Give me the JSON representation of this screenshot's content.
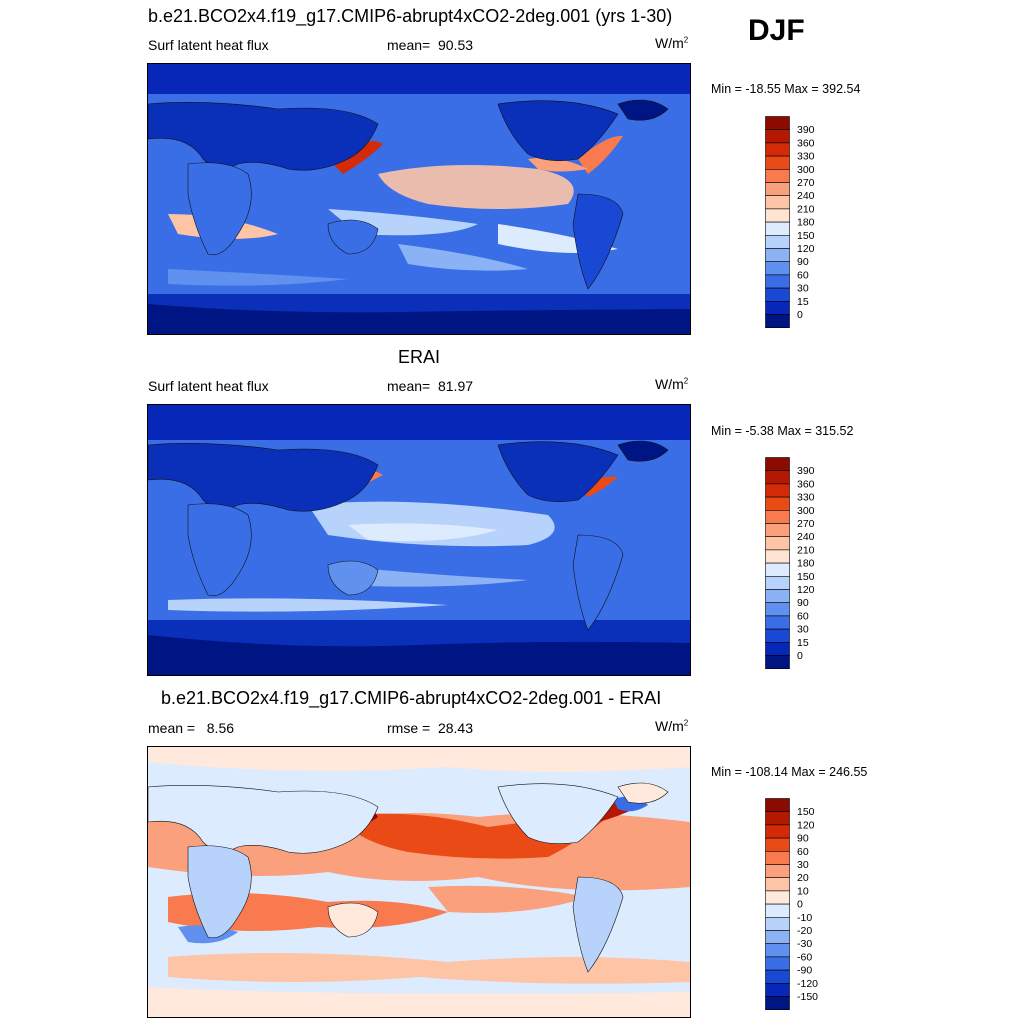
{
  "season": "DJF",
  "panels": [
    {
      "title": "b.e21.BCO2x4.f19_g17.CMIP6-abrupt4xCO2-2deg.001 (yrs 1-30)",
      "variable": "Surf latent heat flux",
      "stat_label": "mean=",
      "stat_value": "90.53",
      "units_base": "W/m",
      "units_exp": "2",
      "minmax": "Min = -18.55 Max = 392.54",
      "colorbar": {
        "levels": [
          "390",
          "360",
          "330",
          "300",
          "270",
          "240",
          "210",
          "180",
          "150",
          "120",
          "90",
          "60",
          "30",
          "15",
          "0"
        ],
        "colors": [
          "#8c0a00",
          "#b51800",
          "#d42a08",
          "#ea4a16",
          "#f87a4e",
          "#fba07c",
          "#fdc4a6",
          "#ffe4d2",
          "#dcebfd",
          "#b7d2fb",
          "#8cb2f6",
          "#6091ef",
          "#3a6ee6",
          "#1948d4",
          "#0627b8",
          "#001584"
        ]
      }
    },
    {
      "title": "ERAI",
      "variable": "Surf latent heat flux",
      "stat_label": "mean=",
      "stat_value": "81.97",
      "units_base": "W/m",
      "units_exp": "2",
      "minmax": "Min =  -5.38 Max = 315.52",
      "colorbar": {
        "levels": [
          "390",
          "360",
          "330",
          "300",
          "270",
          "240",
          "210",
          "180",
          "150",
          "120",
          "90",
          "60",
          "30",
          "15",
          "0"
        ],
        "colors": [
          "#8c0a00",
          "#b51800",
          "#d42a08",
          "#ea4a16",
          "#f87a4e",
          "#fba07c",
          "#fdc4a6",
          "#ffe4d2",
          "#dcebfd",
          "#b7d2fb",
          "#8cb2f6",
          "#6091ef",
          "#3a6ee6",
          "#1948d4",
          "#0627b8",
          "#001584"
        ]
      }
    },
    {
      "title": "b.e21.BCO2x4.f19_g17.CMIP6-abrupt4xCO2-2deg.001 - ERAI",
      "stat_label": "mean =",
      "stat_value": "8.56",
      "rmse_label": "rmse =",
      "rmse_value": "28.43",
      "units_base": "W/m",
      "units_exp": "2",
      "minmax": "Min = -108.14 Max = 246.55",
      "colorbar": {
        "levels": [
          "150",
          "120",
          "90",
          "60",
          "30",
          "20",
          "10",
          "0",
          "-10",
          "-20",
          "-30",
          "-60",
          "-90",
          "-120",
          "-150"
        ],
        "colors": [
          "#8c0a00",
          "#b51800",
          "#d42a08",
          "#ea4a16",
          "#f87a4e",
          "#fba07c",
          "#fdc4a6",
          "#ffe8dc",
          "#dcebfd",
          "#b7d2fb",
          "#8cb2f6",
          "#6091ef",
          "#3a6ee6",
          "#1948d4",
          "#0627b8",
          "#001584"
        ]
      }
    }
  ],
  "chart_data": [
    {
      "type": "heatmap",
      "title": "b.e21.BCO2x4.f19_g17.CMIP6-abrupt4xCO2-2deg.001 (yrs 1-30)",
      "variable": "Surf latent heat flux",
      "units": "W/m2",
      "mean": 90.53,
      "min": -18.55,
      "max": 392.54,
      "levels": [
        0,
        15,
        30,
        60,
        90,
        120,
        150,
        180,
        210,
        240,
        270,
        300,
        330,
        360,
        390
      ]
    },
    {
      "type": "heatmap",
      "title": "ERAI",
      "variable": "Surf latent heat flux",
      "units": "W/m2",
      "mean": 81.97,
      "min": -5.38,
      "max": 315.52,
      "levels": [
        0,
        15,
        30,
        60,
        90,
        120,
        150,
        180,
        210,
        240,
        270,
        300,
        330,
        360,
        390
      ]
    },
    {
      "type": "heatmap",
      "title": "b.e21.BCO2x4.f19_g17.CMIP6-abrupt4xCO2-2deg.001 - ERAI",
      "units": "W/m2",
      "mean": 8.56,
      "rmse": 28.43,
      "min": -108.14,
      "max": 246.55,
      "levels": [
        -150,
        -120,
        -90,
        -60,
        -30,
        -20,
        -10,
        0,
        10,
        20,
        30,
        60,
        90,
        120,
        150
      ]
    }
  ]
}
